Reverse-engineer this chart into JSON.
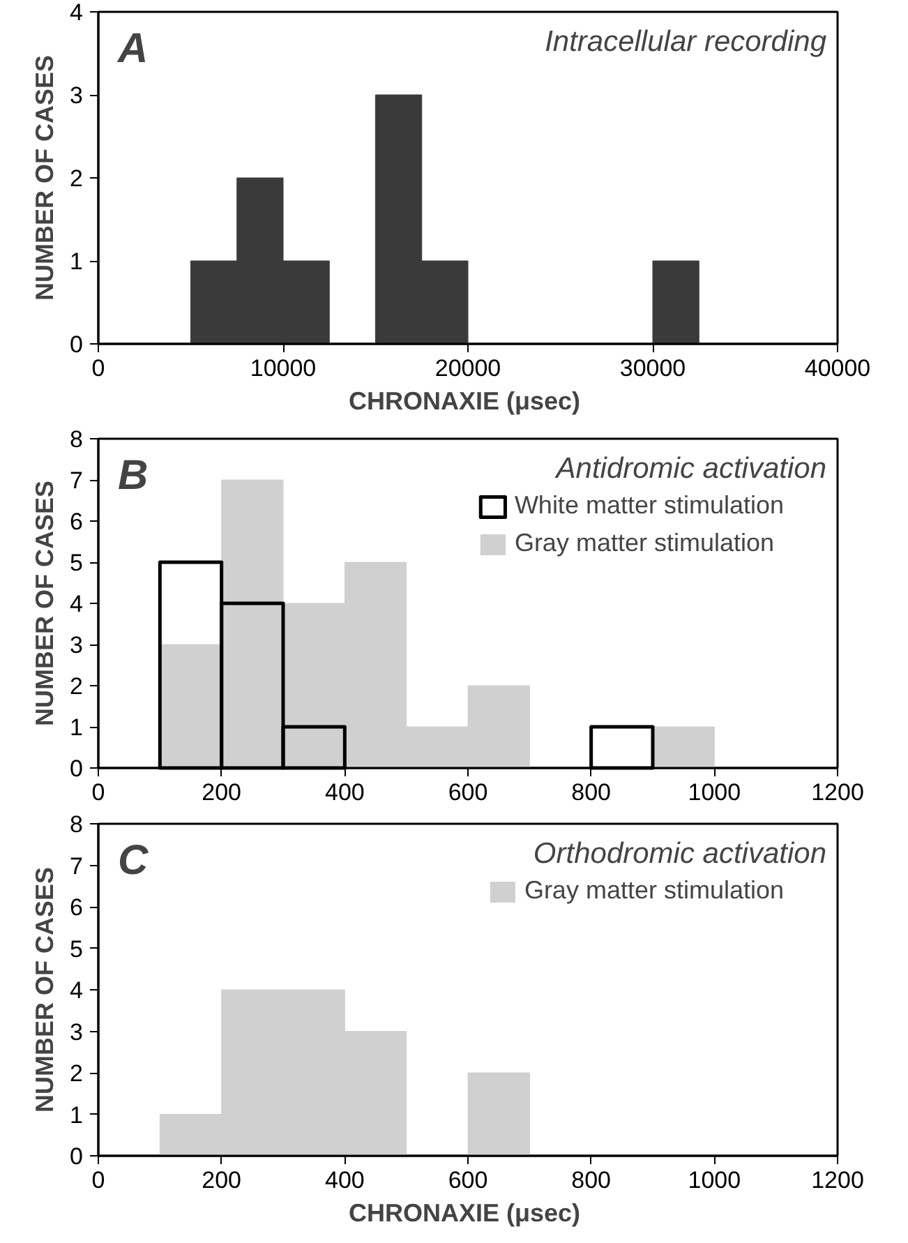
{
  "chart_data": [
    {
      "type": "histogram",
      "title": "Intracellular recording",
      "annotations": [
        "A"
      ],
      "xlabel": "CHRONAXIE  (μsec)",
      "ylabel": "NUMBER OF CASES",
      "bins": [
        5000,
        7500,
        10000,
        12500,
        15000,
        17500,
        20000,
        22500,
        25000,
        27500,
        30000,
        32500
      ],
      "series": [
        {
          "color": "#3a3a3a",
          "values": [
            1,
            2,
            1,
            0,
            3,
            1,
            0,
            0,
            0,
            0,
            1
          ]
        }
      ],
      "xlim": [
        0,
        40000
      ],
      "xticks": [
        0,
        10000,
        20000,
        30000,
        40000
      ],
      "ylim": [
        0,
        4
      ],
      "yticks": [
        0,
        1,
        2,
        3,
        4
      ],
      "grid": false,
      "legend": false
    },
    {
      "type": "histogram",
      "title": "Antidromic activation",
      "annotations": [
        "B"
      ],
      "ylabel": "NUMBER OF CASES",
      "bins": [
        100,
        200,
        300,
        400,
        500,
        600,
        700,
        800,
        900,
        1000
      ],
      "series": [
        {
          "name": "White matter stimulation",
          "line_style": "solid",
          "color": "#000000",
          "values": [
            5,
            4,
            1,
            0,
            0,
            0,
            0,
            1,
            0
          ]
        },
        {
          "name": "Gray matter stimulation",
          "color": "#d0d0d0",
          "values": [
            3,
            7,
            4,
            5,
            1,
            2,
            0,
            0,
            1
          ]
        }
      ],
      "xlim": [
        0,
        1200
      ],
      "xticks": [
        0,
        200,
        400,
        600,
        800,
        1000,
        1200
      ],
      "ylim": [
        0,
        8
      ],
      "yticks": [
        0,
        1,
        2,
        3,
        4,
        5,
        6,
        7,
        8
      ],
      "grid": false,
      "legend": "top right"
    },
    {
      "type": "histogram",
      "title": "Orthodromic activation",
      "annotations": [
        "C"
      ],
      "xlabel": "CHRONAXIE  (μsec)",
      "ylabel": "NUMBER OF CASES",
      "bins": [
        100,
        200,
        300,
        400,
        500,
        600,
        700
      ],
      "series": [
        {
          "name": "Gray matter stimulation",
          "color": "#d0d0d0",
          "values": [
            1,
            4,
            4,
            3,
            0,
            2
          ]
        }
      ],
      "xlim": [
        0,
        1200
      ],
      "xticks": [
        0,
        200,
        400,
        600,
        800,
        1000,
        1200
      ],
      "ylim": [
        0,
        8
      ],
      "yticks": [
        0,
        1,
        2,
        3,
        4,
        5,
        6,
        7,
        8
      ],
      "grid": false,
      "legend": "top right"
    }
  ]
}
